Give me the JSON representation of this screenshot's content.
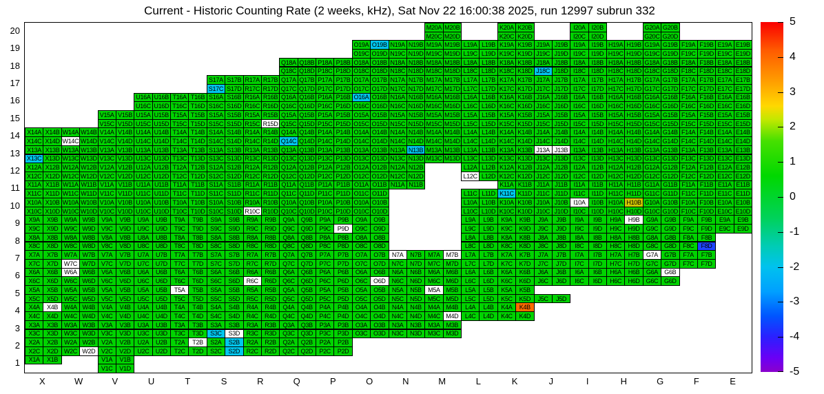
{
  "title": "Current - Historic Counting Rate (2 weeks, kHz), Sat Nov 22 16:00:38 2025, run 12997 subrun 332",
  "chart_data": {
    "type": "heatmap",
    "title": "Current - Historic Counting Rate (2 weeks, kHz), Sat Nov 22 16:00:38 2025, run 12997 subrun 332",
    "run": "12997",
    "subrun": "332",
    "timestamp": "Sat Nov 22 16:00:38 2025",
    "units": "kHz",
    "columns": [
      "X",
      "W",
      "V",
      "U",
      "T",
      "S",
      "R",
      "Q",
      "P",
      "O",
      "N",
      "M",
      "L",
      "K",
      "J",
      "I",
      "H",
      "G",
      "F",
      "E"
    ],
    "y_labels": [
      20,
      19,
      18,
      17,
      16,
      15,
      14,
      13,
      12,
      11,
      10,
      9,
      8,
      7,
      6,
      5,
      4,
      3,
      2,
      1
    ],
    "quadrant_letters": [
      "A",
      "B",
      "C",
      "D"
    ],
    "grid": [
      {
        "row": 20,
        "cols": [
          "M",
          "K",
          "I",
          "G"
        ]
      },
      {
        "row": 19,
        "cols": [
          "O",
          "N",
          "M",
          "L",
          "K",
          "J",
          "I",
          "H",
          "G",
          "F",
          "E"
        ]
      },
      {
        "row": 18,
        "cols": [
          "Q",
          "P",
          "O",
          "N",
          "M",
          "L",
          "K",
          "J",
          "I",
          "H",
          "G",
          "F",
          "E"
        ]
      },
      {
        "row": 17,
        "cols": [
          "S",
          "R",
          "Q",
          "P",
          "O",
          "N",
          "M",
          "L",
          "K",
          "J",
          "I",
          "H",
          "G",
          "F",
          "E"
        ]
      },
      {
        "row": 16,
        "cols": [
          "U",
          "T",
          "S",
          "R",
          "Q",
          "P",
          "O",
          "N",
          "M",
          "L",
          "K",
          "J",
          "I",
          "H",
          "G",
          "F",
          "E"
        ]
      },
      {
        "row": 15,
        "cols": [
          "V",
          "U",
          "T",
          "S",
          "R",
          "Q",
          "P",
          "O",
          "N",
          "M",
          "L",
          "K",
          "J",
          "I",
          "H",
          "G",
          "F",
          "E"
        ]
      },
      {
        "row": 14,
        "cols": [
          "X",
          "W",
          "V",
          "U",
          "T",
          "S",
          "R",
          "Q",
          "P",
          "O",
          "N",
          "M",
          "L",
          "K",
          "J",
          "I",
          "H",
          "G",
          "F",
          "E"
        ]
      },
      {
        "row": 13,
        "cols": [
          "X",
          "W",
          "V",
          "U",
          "T",
          "S",
          "R",
          "Q",
          "P",
          "O",
          "N",
          "M",
          "L",
          "K",
          "J",
          "I",
          "H",
          "G",
          "F",
          "E"
        ]
      },
      {
        "row": 12,
        "cols": [
          "X",
          "W",
          "V",
          "U",
          "T",
          "S",
          "R",
          "Q",
          "P",
          "O",
          "N",
          "L",
          "K",
          "J",
          "I",
          "H",
          "G",
          "F",
          "E"
        ]
      },
      {
        "row": 11,
        "cols": [
          "X",
          "W",
          "V",
          "U",
          "T",
          "S",
          "R",
          "Q",
          "P",
          "O",
          "N",
          "L",
          "K",
          "J",
          "I",
          "H",
          "G",
          "F",
          "E"
        ]
      },
      {
        "row": 10,
        "cols": [
          "X",
          "W",
          "V",
          "U",
          "T",
          "S",
          "R",
          "Q",
          "P",
          "O",
          "L",
          "K",
          "J",
          "I",
          "H",
          "G",
          "F",
          "E"
        ]
      },
      {
        "row": 9,
        "cols": [
          "X",
          "W",
          "V",
          "U",
          "T",
          "S",
          "R",
          "Q",
          "P",
          "O",
          "L",
          "K",
          "J",
          "I",
          "H",
          "G",
          "F",
          "E"
        ]
      },
      {
        "row": 8,
        "cols": [
          "X",
          "W",
          "V",
          "U",
          "T",
          "S",
          "R",
          "Q",
          "P",
          "O",
          "L",
          "K",
          "J",
          "I",
          "H",
          "G",
          "F"
        ]
      },
      {
        "row": 7,
        "cols": [
          "X",
          "W",
          "V",
          "U",
          "T",
          "S",
          "R",
          "Q",
          "P",
          "O",
          "N",
          "M",
          "L",
          "K",
          "J",
          "I",
          "H",
          "G",
          "F"
        ]
      },
      {
        "row": 6,
        "cols": [
          "X",
          "W",
          "V",
          "U",
          "T",
          "S",
          "R",
          "Q",
          "P",
          "O",
          "N",
          "M",
          "L",
          "K",
          "J",
          "I",
          "H",
          "G"
        ]
      },
      {
        "row": 5,
        "cols": [
          "X",
          "W",
          "V",
          "U",
          "T",
          "S",
          "R",
          "Q",
          "P",
          "O",
          "N",
          "M",
          "L",
          "K",
          "J"
        ]
      },
      {
        "row": 4,
        "cols": [
          "X",
          "W",
          "V",
          "U",
          "T",
          "S",
          "R",
          "Q",
          "P",
          "O",
          "N",
          "M",
          "L",
          "K"
        ]
      },
      {
        "row": 3,
        "cols": [
          "X",
          "W",
          "V",
          "U",
          "T",
          "S",
          "R",
          "Q",
          "P",
          "O",
          "N",
          "M"
        ]
      },
      {
        "row": 2,
        "cols": [
          "X",
          "W",
          "V",
          "U",
          "T",
          "S",
          "R",
          "Q",
          "P"
        ]
      },
      {
        "row": 1,
        "cols": [
          "X",
          "V"
        ]
      }
    ],
    "partial_cells": {
      "X1": [
        "A",
        "B"
      ],
      "J5": [
        "C",
        "D"
      ],
      "N11": [
        "A",
        "B"
      ],
      "L11": [
        "C",
        "D"
      ]
    },
    "baseline": {
      "value_range": "0 to +1",
      "color": "#00d300"
    },
    "masked_color": "#ffffff",
    "masked_channels": [
      "T2B",
      "W2D",
      "S3D",
      "X4B",
      "M4D",
      "M5A",
      "T5A",
      "W6A",
      "R6C",
      "O6D",
      "G6B",
      "W7C",
      "N7A",
      "M7B",
      "G7A",
      "H9B",
      "P9D",
      "I10A",
      "R10C",
      "L12C",
      "J13A",
      "J13B",
      "W14C",
      "R15D"
    ],
    "anomalies": {
      "O19B": {
        "value": -1.5,
        "color": "#00c6ee"
      },
      "J18C": {
        "value": -1.5,
        "color": "#00c6ee"
      },
      "S17C": {
        "value": -1.5,
        "color": "#00c6ee"
      },
      "O16A": {
        "value": -1.5,
        "color": "#00c6ee"
      },
      "Q14C": {
        "value": -1.5,
        "color": "#00c6ee"
      },
      "X13C": {
        "value": -1.5,
        "color": "#00c6ee"
      },
      "N13B": {
        "value": -1.5,
        "color": "#00c6ee"
      },
      "K11C": {
        "value": -1.5,
        "color": "#00c6ee"
      },
      "H10B": {
        "value": 3.0,
        "color": "#cfc400"
      },
      "F8D": {
        "value": -3.2,
        "color": "#1e46ff"
      },
      "K4B": {
        "value": 4.3,
        "color": "#ff6a00"
      },
      "S3C": {
        "value": -1.5,
        "color": "#00c6ee"
      },
      "S2B": {
        "value": -1.5,
        "color": "#00c6ee"
      },
      "S2D": {
        "value": -1.5,
        "color": "#00c6ee"
      }
    },
    "colorbar": {
      "min": -5,
      "max": 5,
      "ticks": [
        5,
        4,
        3,
        2,
        1,
        0,
        -1,
        -2,
        -3,
        -4,
        -5
      ],
      "gradient": [
        [
          0,
          "#fa0000"
        ],
        [
          8,
          "#ff5a00"
        ],
        [
          17,
          "#ff9e00"
        ],
        [
          24,
          "#ffd800"
        ],
        [
          28,
          "#c0e800"
        ],
        [
          34,
          "#46e000"
        ],
        [
          44,
          "#00d800"
        ],
        [
          56,
          "#00d25a"
        ],
        [
          64,
          "#00ccb4"
        ],
        [
          70,
          "#00c2ee"
        ],
        [
          77,
          "#00a0ff"
        ],
        [
          84,
          "#0055ff"
        ],
        [
          90,
          "#2b20ff"
        ],
        [
          96,
          "#6a00f5"
        ],
        [
          100,
          "#8a00cc"
        ]
      ]
    }
  }
}
